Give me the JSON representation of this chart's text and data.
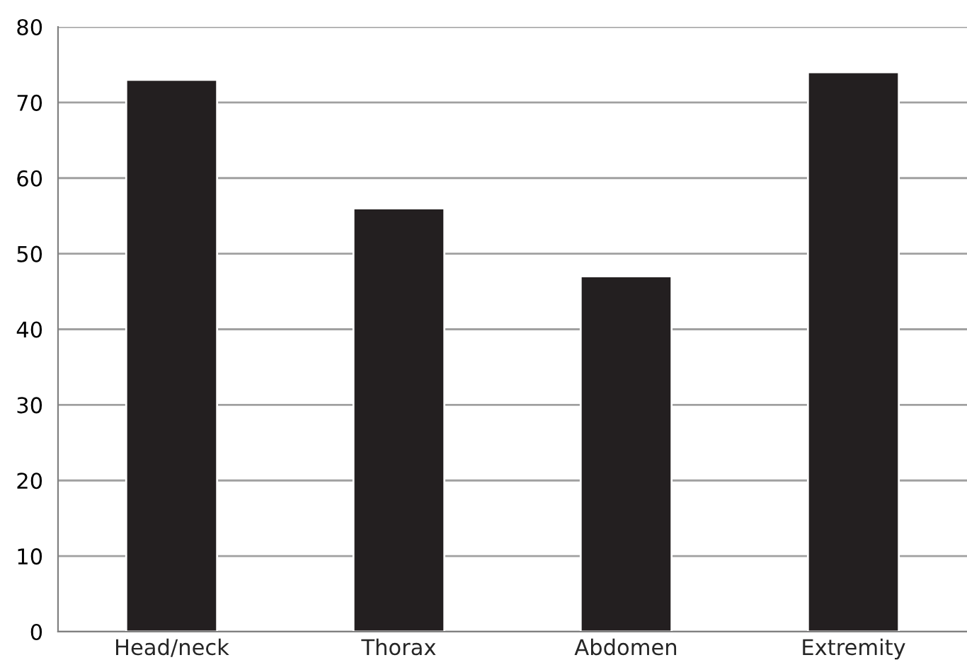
{
  "chart_data": {
    "type": "bar",
    "categories": [
      "Head/neck",
      "Thorax",
      "Abdomen",
      "Extremity"
    ],
    "values": [
      73,
      56,
      47,
      74
    ],
    "color": "#231f20",
    "ylim": [
      0,
      80
    ],
    "yticks": [
      0,
      10,
      20,
      30,
      40,
      50,
      60,
      70,
      80
    ],
    "grid": "y",
    "legend": false
  }
}
